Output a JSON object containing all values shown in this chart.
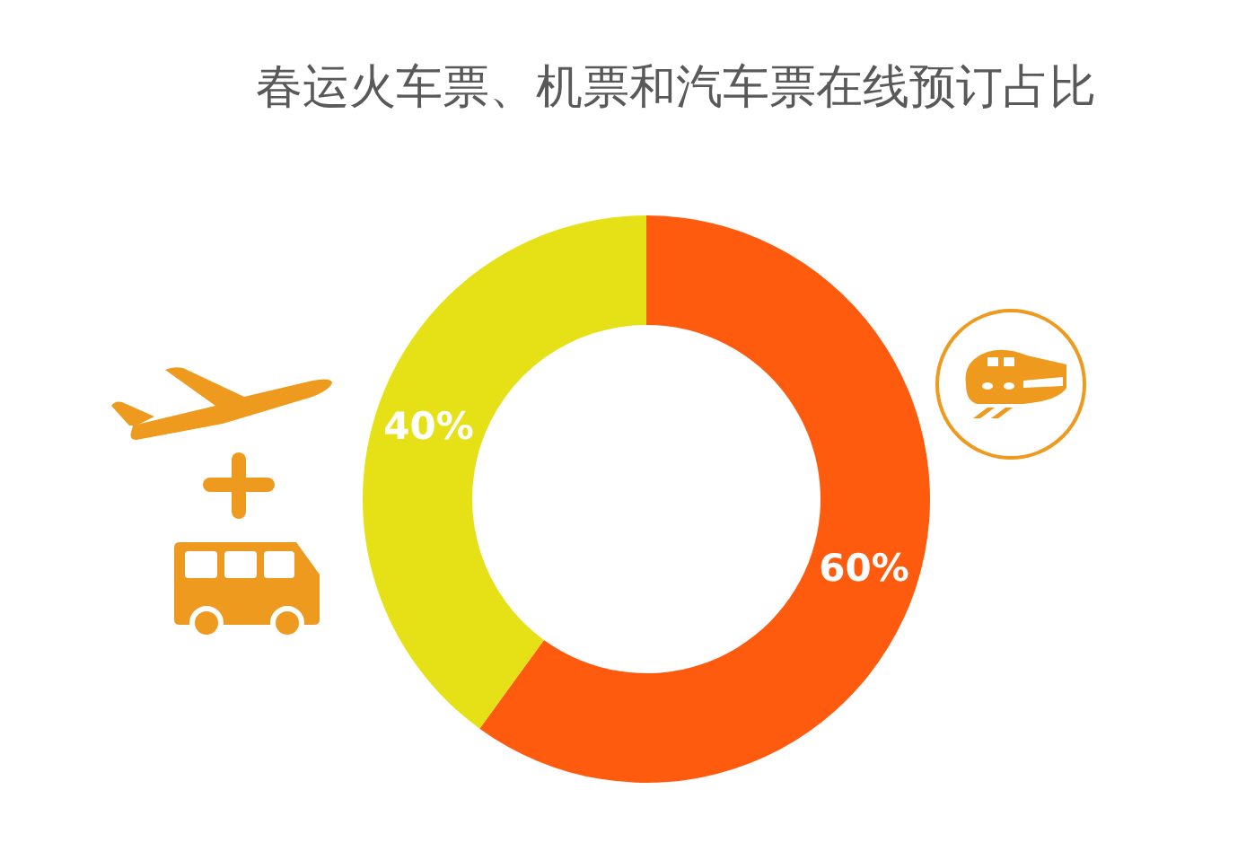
{
  "chart_data": {
    "type": "donut",
    "title": "春运火车票、机票和汽车票在线预订占比",
    "categories": [
      null,
      null
    ],
    "values": [
      60,
      40
    ],
    "colors": [
      "#ff5b0f",
      "#e5e116"
    ],
    "value_labels": [
      "60%",
      "40%"
    ]
  }
}
